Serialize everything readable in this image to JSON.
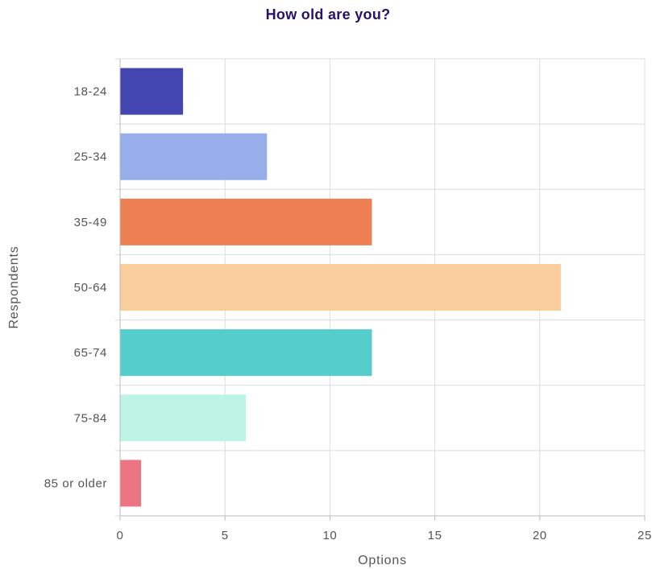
{
  "chart_data": {
    "type": "bar",
    "orientation": "horizontal",
    "title": "How old are you?",
    "xlabel": "Options",
    "ylabel": "Respondents",
    "categories": [
      "18-24",
      "25-34",
      "35-49",
      "50-64",
      "65-74",
      "75-84",
      "85 or older"
    ],
    "values": [
      3,
      7,
      12,
      21,
      12,
      6,
      1
    ],
    "colors": [
      "#4346b0",
      "#97aeea",
      "#ed7f53",
      "#facd9c",
      "#55cdcc",
      "#bef4e5",
      "#ed7483"
    ],
    "xlim": [
      0,
      25
    ],
    "xticks": [
      "0",
      "5",
      "10",
      "15",
      "20",
      "25"
    ],
    "grid": true,
    "legend": "none"
  }
}
